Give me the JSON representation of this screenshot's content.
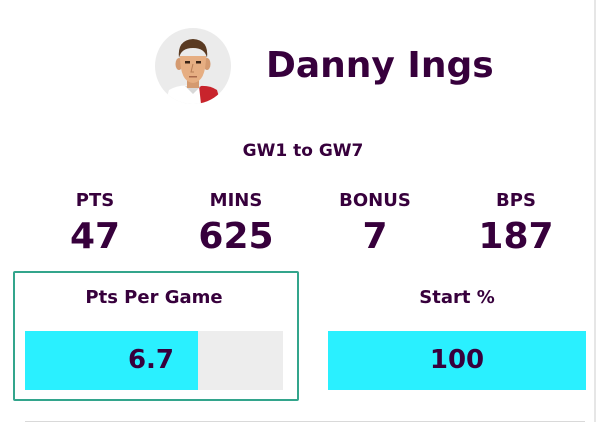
{
  "player": {
    "name": "Danny Ings"
  },
  "range": "GW1 to GW7",
  "stats": [
    {
      "label": "PTS",
      "value": "47"
    },
    {
      "label": "MINS",
      "value": "625"
    },
    {
      "label": "BONUS",
      "value": "7"
    },
    {
      "label": "BPS",
      "value": "187"
    }
  ],
  "metrics": {
    "pts_per_game": {
      "label": "Pts Per Game",
      "value": "6.7",
      "fill_fraction": 0.67
    },
    "start_pct": {
      "label": "Start %",
      "value": "100",
      "fill_fraction": 1.0
    }
  },
  "colors": {
    "text": "#37003c",
    "bar_fill": "#2af0ff",
    "bar_track": "#ededed",
    "highlight_border": "#33a58c"
  }
}
